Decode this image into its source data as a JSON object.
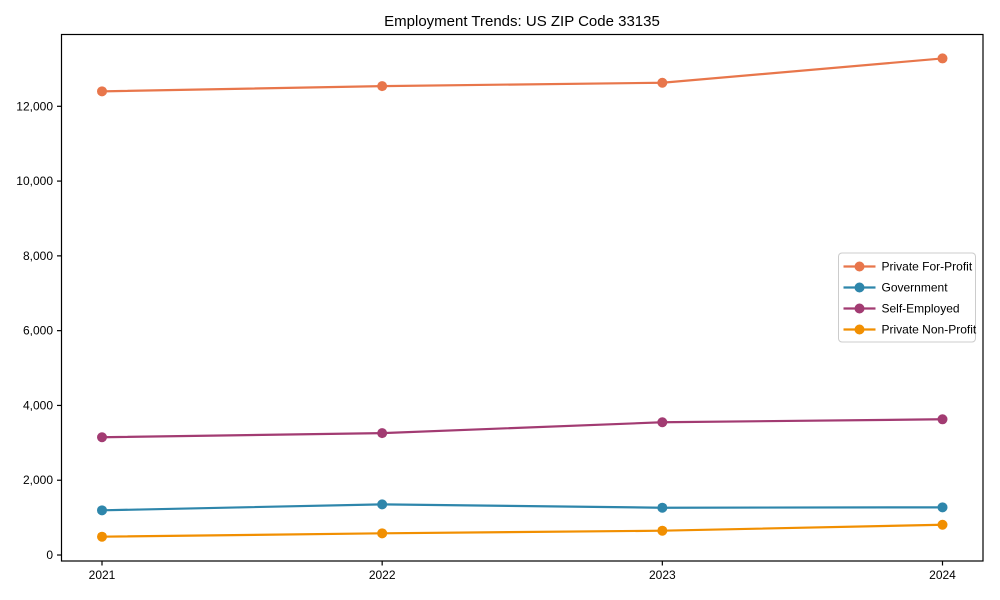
{
  "figure": {
    "title": "Employment Trends: US ZIP Code 33135"
  },
  "chart_data": {
    "type": "line",
    "title": "Employment Trends: US ZIP Code 33135",
    "xlabel": "",
    "ylabel": "",
    "categories": [
      "2021",
      "2022",
      "2023",
      "2024"
    ],
    "series": [
      {
        "name": "Private For-Profit",
        "color": "#E8764B",
        "values": [
          12400,
          12540,
          12630,
          13280
        ]
      },
      {
        "name": "Government",
        "color": "#2E86AB",
        "values": [
          1195,
          1355,
          1265,
          1275
        ]
      },
      {
        "name": "Self-Employed",
        "color": "#A23B72",
        "values": [
          3150,
          3260,
          3550,
          3630
        ]
      },
      {
        "name": "Private Non-Profit",
        "color": "#F18F01",
        "values": [
          490,
          580,
          650,
          810
        ]
      }
    ],
    "ylim": [
      -160,
      13920
    ],
    "yticks": [
      0,
      2000,
      4000,
      6000,
      8000,
      10000,
      12000
    ],
    "ytick_labels": [
      "0",
      "2,000",
      "4,000",
      "6,000",
      "8,000",
      "10,000",
      "12,000"
    ],
    "grid": false,
    "legend_position": "center-right",
    "axis_color": "#000000",
    "legend_border_color": "#cccccc",
    "legend_background": "#ffffff"
  }
}
